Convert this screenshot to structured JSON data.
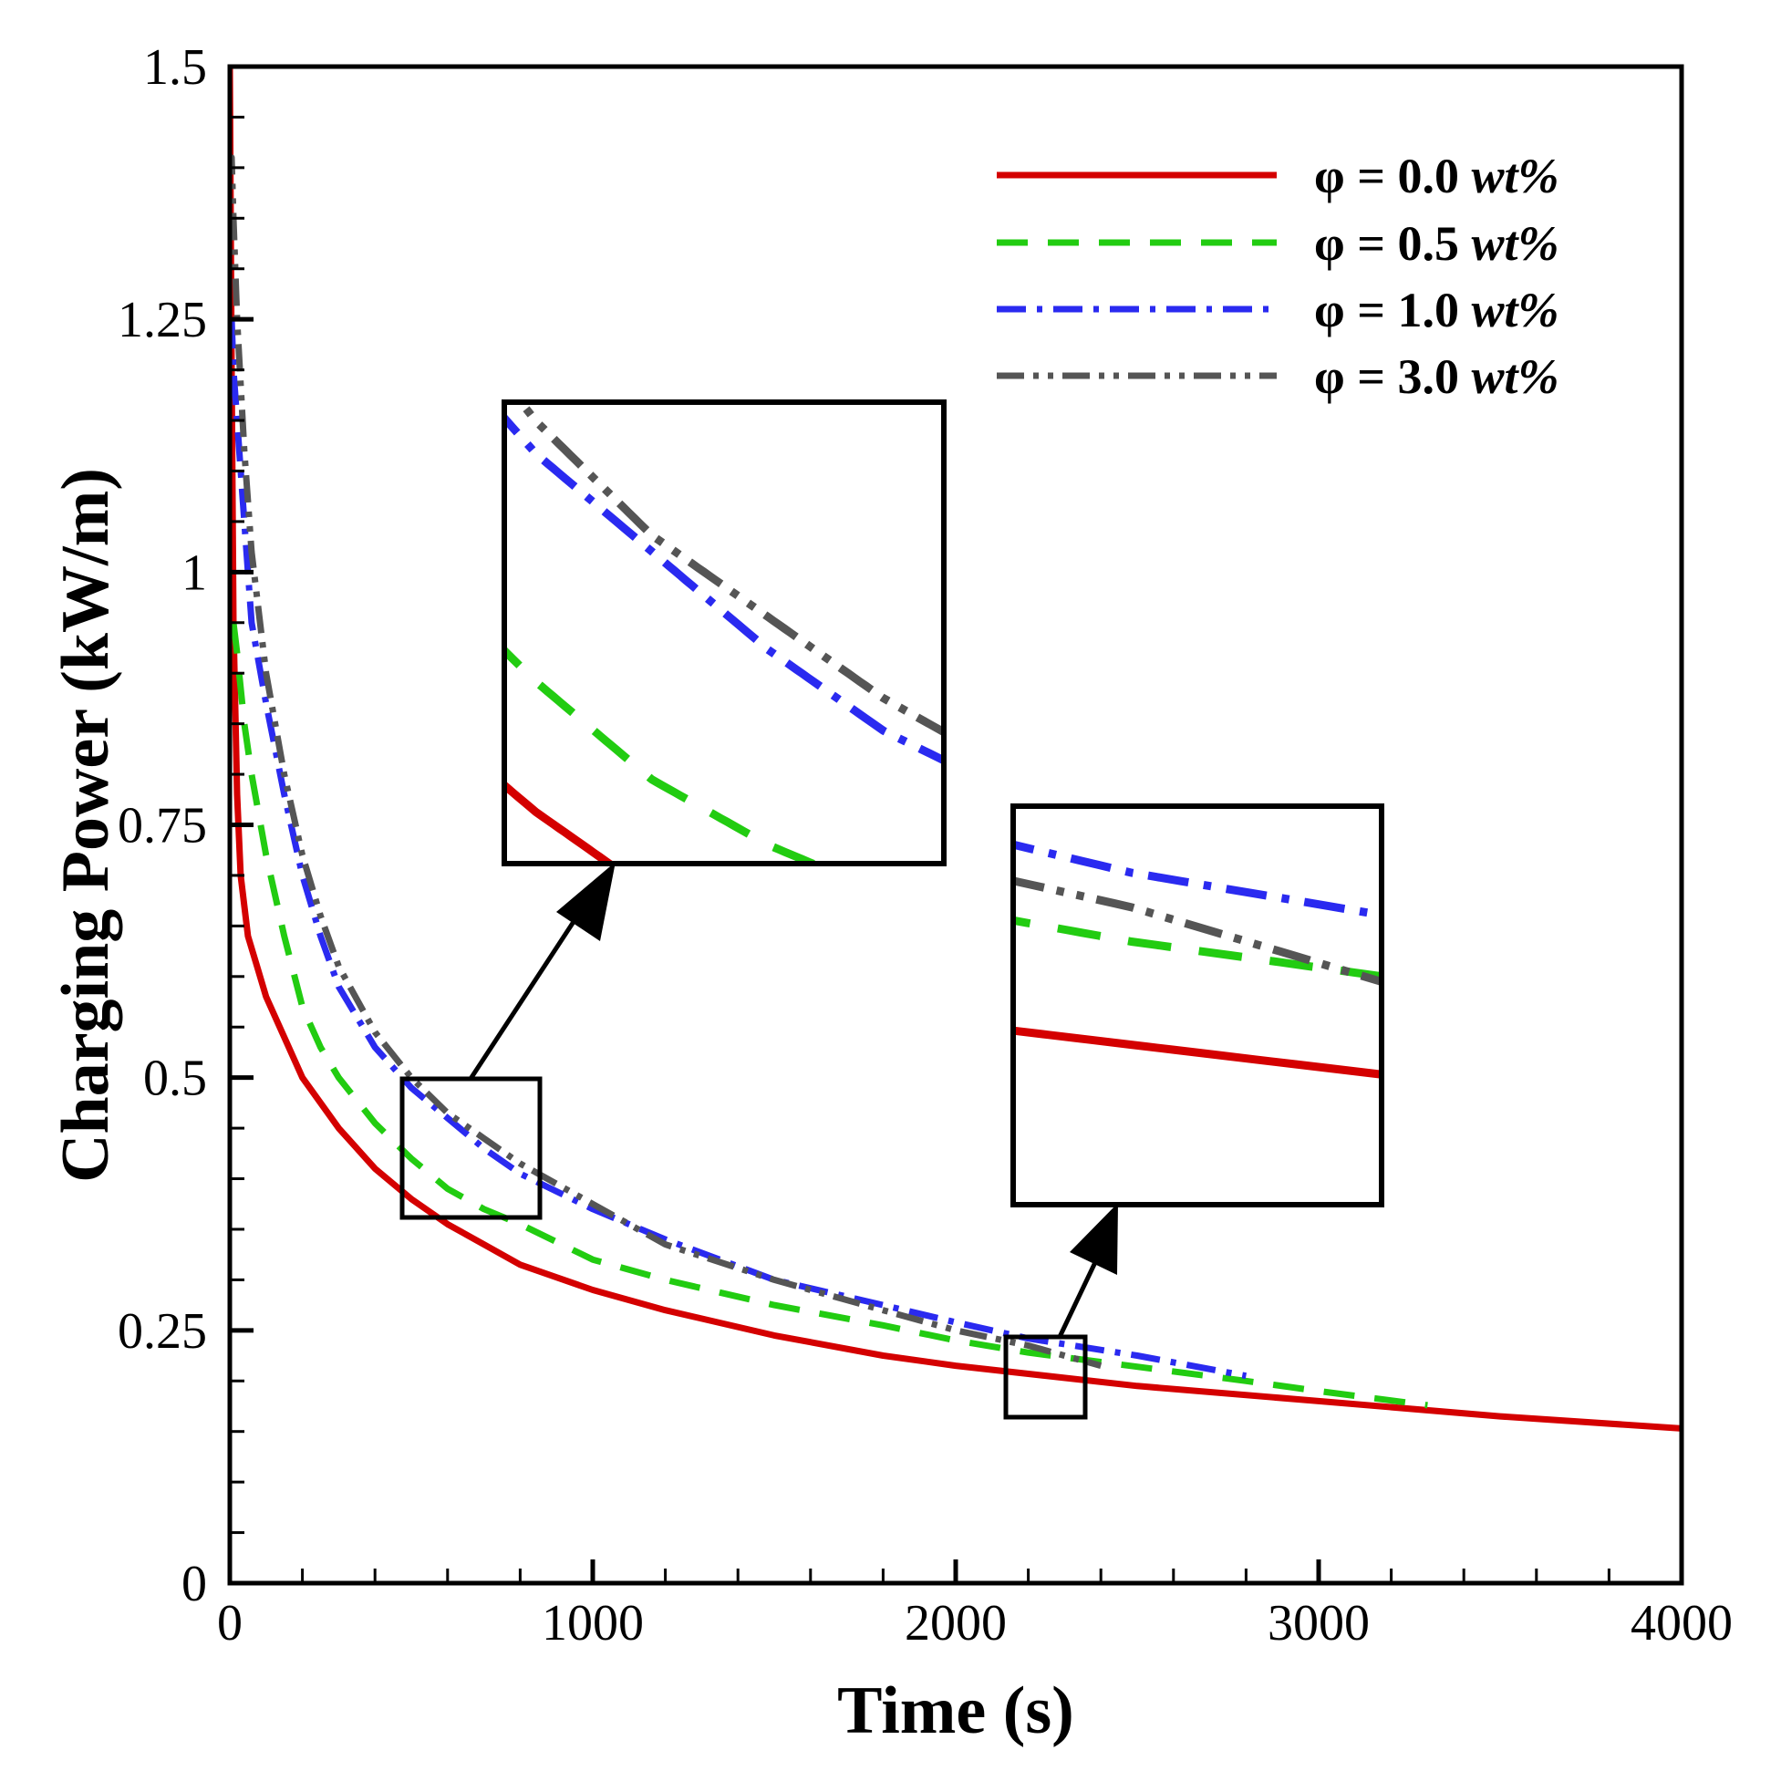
{
  "chart_data": {
    "type": "line",
    "title": "",
    "xlabel": "Time (s)",
    "ylabel": "Charging Power (kW/m)",
    "xlim": [
      0,
      4000
    ],
    "ylim": [
      0,
      1.5
    ],
    "x_ticks": [
      0,
      1000,
      2000,
      3000,
      4000
    ],
    "x_tick_labels": [
      "0",
      "1000",
      "2000",
      "3000",
      "4000"
    ],
    "y_ticks": [
      0,
      0.25,
      0.5,
      0.75,
      1,
      1.25,
      1.5
    ],
    "y_tick_labels": [
      "0",
      "0.25",
      "0.5",
      "0.75",
      "1",
      "1.25",
      "1.5"
    ],
    "grid": false,
    "legend_position": "top-right",
    "series": [
      {
        "name": "φ = 0.0 wt%",
        "legend_prefix": "φ = 0.0 ",
        "legend_italic": "wt%",
        "color": "#d40000",
        "dash": "solid",
        "x": [
          0,
          5,
          10,
          20,
          30,
          50,
          75,
          100,
          150,
          200,
          300,
          400,
          500,
          600,
          700,
          800,
          1000,
          1200,
          1500,
          1800,
          2000,
          2500,
          3000,
          3500,
          4000
        ],
        "y": [
          1.5,
          1.2,
          0.95,
          0.78,
          0.7,
          0.64,
          0.61,
          0.58,
          0.54,
          0.5,
          0.45,
          0.41,
          0.38,
          0.355,
          0.335,
          0.315,
          0.29,
          0.27,
          0.245,
          0.225,
          0.215,
          0.195,
          0.18,
          0.165,
          0.153
        ]
      },
      {
        "name": "φ = 0.5 wt%",
        "legend_prefix": "φ = 0.5 ",
        "legend_italic": "wt%",
        "color": "#22cc11",
        "dash": "dashed",
        "x": [
          10,
          20,
          40,
          60,
          100,
          150,
          200,
          250,
          300,
          400,
          500,
          600,
          700,
          800,
          1000,
          1200,
          1500,
          1800,
          2000,
          2200,
          2500,
          2800,
          3000,
          3300
        ],
        "y": [
          0.95,
          0.92,
          0.85,
          0.8,
          0.72,
          0.64,
          0.57,
          0.53,
          0.5,
          0.455,
          0.42,
          0.39,
          0.37,
          0.355,
          0.32,
          0.3,
          0.275,
          0.255,
          0.24,
          0.228,
          0.214,
          0.2,
          0.19,
          0.176
        ]
      },
      {
        "name": "φ = 1.0 wt%",
        "legend_prefix": "φ = 1.0 ",
        "legend_italic": "wt%",
        "color": "#2a2af0",
        "dash": "dash-dot",
        "x": [
          5,
          10,
          20,
          40,
          60,
          100,
          150,
          200,
          250,
          300,
          400,
          500,
          600,
          700,
          800,
          1000,
          1200,
          1500,
          1800,
          2000,
          2200,
          2500,
          2800
        ],
        "y": [
          1.25,
          1.2,
          1.15,
          1.05,
          0.95,
          0.87,
          0.78,
          0.7,
          0.64,
          0.59,
          0.53,
          0.49,
          0.46,
          0.43,
          0.405,
          0.37,
          0.34,
          0.3,
          0.275,
          0.258,
          0.242,
          0.225,
          0.205
        ]
      },
      {
        "name": "φ = 3.0 wt%",
        "legend_prefix": "φ = 3.0 ",
        "legend_italic": "wt%",
        "color": "#555555",
        "dash": "dash-dot-dot",
        "x": [
          0,
          5,
          10,
          20,
          40,
          60,
          100,
          150,
          200,
          250,
          300,
          400,
          500,
          600,
          700,
          800,
          1000,
          1200,
          1500,
          1800,
          2000,
          2200,
          2400
        ],
        "y": [
          1.4,
          1.41,
          1.35,
          1.25,
          1.12,
          1.02,
          0.9,
          0.8,
          0.72,
          0.66,
          0.61,
          0.545,
          0.5,
          0.465,
          0.44,
          0.415,
          0.375,
          0.335,
          0.3,
          0.27,
          0.25,
          0.235,
          0.215
        ]
      }
    ],
    "annotations": [
      {
        "type": "zoom-box",
        "x_range": [
          475,
          850
        ],
        "y_range": [
          0.365,
          0.505
        ]
      },
      {
        "type": "zoom-box",
        "x_range": [
          2130,
          2350
        ],
        "y_range": [
          0.175,
          0.255
        ]
      }
    ]
  }
}
